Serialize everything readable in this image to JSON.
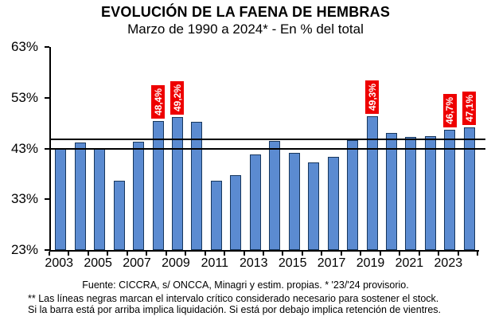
{
  "header": {
    "title": "EVOLUCIÓN DE LA FAENA DE HEMBRAS",
    "subtitle": "Marzo de 1990 a 2024* - En % del total"
  },
  "footer": {
    "source": "Fuente: CICCRA, s/ ONCCA, Minagri y estim. propias. * '23/'24  provisorio.",
    "note_line1": "** Las líneas negras marcan el intervalo crítico considerado necesario para sostener el stock.",
    "note_line2": "Si la barra está por arriba implica liquidación. Si está por debajo implica retención de vientres."
  },
  "chart_data": {
    "type": "bar",
    "title": "EVOLUCIÓN DE LA FAENA DE HEMBRAS",
    "subtitle": "Marzo de 1990 a 2024* - En % del total",
    "categories": [
      "2003",
      "2004",
      "2005",
      "2006",
      "2007",
      "2008",
      "2009",
      "2010",
      "2011",
      "2012",
      "2013",
      "2014",
      "2015",
      "2016",
      "2017",
      "2018",
      "2019",
      "2020",
      "2021",
      "2022",
      "2023",
      "2024"
    ],
    "values": [
      43.0,
      44.2,
      43.0,
      36.7,
      44.3,
      48.4,
      49.2,
      48.2,
      36.6,
      37.7,
      41.8,
      44.5,
      42.1,
      40.2,
      41.3,
      44.6,
      49.3,
      46.0,
      45.3,
      45.4,
      46.7,
      47.1
    ],
    "value_labels": {
      "2008": "48,4%",
      "2009": "49,2%",
      "2019": "49,3%",
      "2023": "46,7%",
      "2024": "47,1%"
    },
    "x_tick_labels": [
      "2003",
      "2005",
      "2007",
      "2009",
      "2011",
      "2013",
      "2015",
      "2017",
      "2019",
      "2021",
      "2023"
    ],
    "yticks": [
      63,
      53,
      43,
      33,
      23
    ],
    "ytick_labels": [
      "63%",
      "53%",
      "43%",
      "33%",
      "23%"
    ],
    "ylim": [
      23,
      63
    ],
    "xlabel": "",
    "ylabel": "",
    "grid": false,
    "legend": null,
    "ref_lines": [
      43.0,
      44.8
    ],
    "bar_color": "#5B8BD1",
    "bar_border_color": "#17375D",
    "label_bg_color": "#EE0000",
    "label_text_color": "#FFFFFF",
    "ref_line_color": "#000000"
  }
}
